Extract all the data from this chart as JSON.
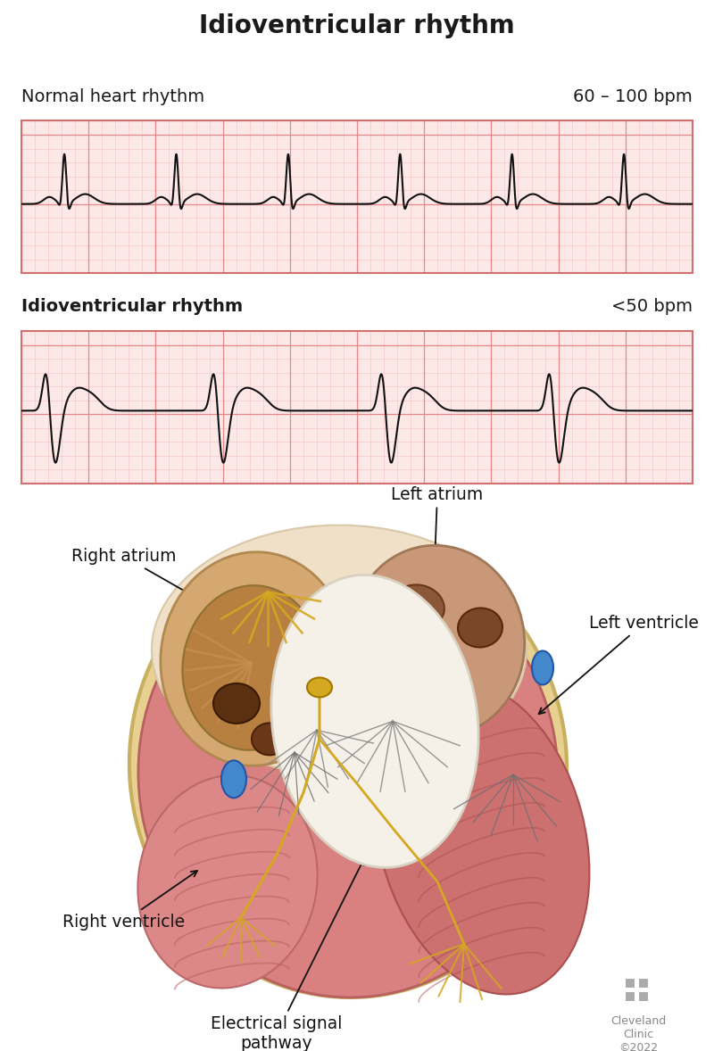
{
  "title": "Idioventricular rhythm",
  "title_fontsize": 20,
  "title_fontweight": "bold",
  "ecg1_label": "Normal heart rhythm",
  "ecg1_bpm": "60 – 100 bpm",
  "ecg1_label_fontsize": 14,
  "ecg2_label": "Idioventricular rhythm",
  "ecg2_bpm": "<50 bpm",
  "ecg2_label_fontsize": 14,
  "ecg_bg": "#fde8e8",
  "ecg_grid_major": "#e88888",
  "ecg_grid_minor": "#f5c0c0",
  "ecg_line_color": "#111111",
  "ecg_border": "#d07070",
  "cleveland_text": "Cleveland\nClinic\n©2022",
  "bg_color": "#ffffff",
  "figure_width": 8.0,
  "figure_height": 11.78
}
